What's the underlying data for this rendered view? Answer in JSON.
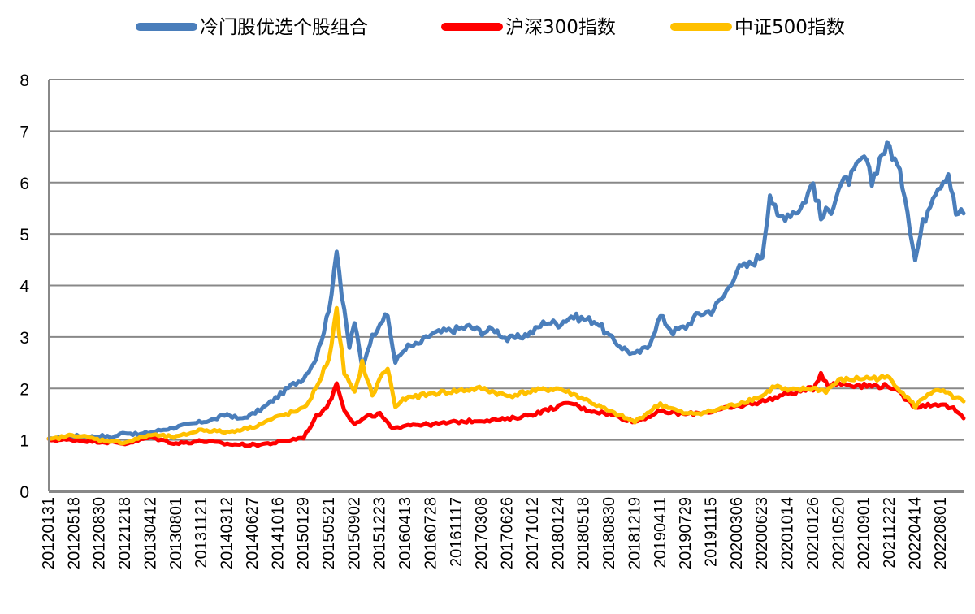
{
  "chart_data": {
    "type": "line",
    "title": "",
    "xlabel": "",
    "ylabel": "",
    "ylim": [
      0,
      8
    ],
    "yticks": [
      "0",
      "1",
      "2",
      "3",
      "4",
      "5",
      "6",
      "7",
      "8"
    ],
    "grid": true,
    "legend_position": "top",
    "x_tick_labels": [
      "20120131",
      "20120518",
      "20120830",
      "20121218",
      "20130412",
      "20130801",
      "20131121",
      "20140312",
      "20140627",
      "20141016",
      "20150129",
      "20150521",
      "20150902",
      "20151223",
      "20160413",
      "20160728",
      "20161117",
      "20170308",
      "20170626",
      "20171012",
      "20180124",
      "20180518",
      "20180830",
      "20181219",
      "20190411",
      "20190729",
      "20191115",
      "20200306",
      "20200623",
      "20201014",
      "20210126",
      "20210520",
      "20210901",
      "20211222",
      "20220414",
      "20220801"
    ],
    "series": [
      {
        "name": "冷门股优选个股组合",
        "color": "#4a7ebb",
        "points": [
          [
            0,
            1.0
          ],
          [
            0.5,
            1.05
          ],
          [
            1,
            1.08
          ],
          [
            1.5,
            1.05
          ],
          [
            2,
            1.08
          ],
          [
            2.5,
            1.05
          ],
          [
            3,
            1.15
          ],
          [
            3.5,
            1.1
          ],
          [
            4,
            1.15
          ],
          [
            4.5,
            1.2
          ],
          [
            5,
            1.25
          ],
          [
            5.5,
            1.3
          ],
          [
            6,
            1.35
          ],
          [
            6.5,
            1.4
          ],
          [
            7,
            1.5
          ],
          [
            7.5,
            1.4
          ],
          [
            8,
            1.5
          ],
          [
            8.5,
            1.65
          ],
          [
            9,
            1.85
          ],
          [
            9.5,
            2.05
          ],
          [
            10,
            2.2
          ],
          [
            10.5,
            2.6
          ],
          [
            11,
            3.5
          ],
          [
            11.3,
            4.75
          ],
          [
            11.5,
            3.8
          ],
          [
            11.8,
            2.8
          ],
          [
            12,
            3.3
          ],
          [
            12.3,
            2.4
          ],
          [
            12.6,
            2.9
          ],
          [
            13,
            3.3
          ],
          [
            13.3,
            3.4
          ],
          [
            13.6,
            2.5
          ],
          [
            14,
            2.8
          ],
          [
            14.5,
            2.85
          ],
          [
            15,
            3.05
          ],
          [
            15.5,
            3.1
          ],
          [
            16,
            3.15
          ],
          [
            16.5,
            3.2
          ],
          [
            17,
            3.1
          ],
          [
            17.5,
            3.15
          ],
          [
            18,
            2.95
          ],
          [
            18.5,
            3.0
          ],
          [
            19,
            3.1
          ],
          [
            19.5,
            3.3
          ],
          [
            20,
            3.25
          ],
          [
            20.5,
            3.4
          ],
          [
            21,
            3.35
          ],
          [
            21.5,
            3.3
          ],
          [
            22,
            3.0
          ],
          [
            22.5,
            2.8
          ],
          [
            23,
            2.65
          ],
          [
            23.5,
            2.8
          ],
          [
            24,
            3.4
          ],
          [
            24.5,
            3.1
          ],
          [
            25,
            3.2
          ],
          [
            25.5,
            3.45
          ],
          [
            26,
            3.5
          ],
          [
            26.5,
            3.8
          ],
          [
            27,
            4.3
          ],
          [
            27.5,
            4.4
          ],
          [
            28,
            4.6
          ],
          [
            28.3,
            5.8
          ],
          [
            28.6,
            5.3
          ],
          [
            29,
            5.4
          ],
          [
            29.5,
            5.5
          ],
          [
            30,
            6.0
          ],
          [
            30.3,
            5.3
          ],
          [
            30.7,
            5.5
          ],
          [
            31,
            5.9
          ],
          [
            31.5,
            6.1
          ],
          [
            32,
            6.5
          ],
          [
            32.3,
            6.0
          ],
          [
            32.7,
            6.6
          ],
          [
            33,
            6.7
          ],
          [
            33.3,
            6.3
          ],
          [
            33.6,
            5.8
          ],
          [
            34,
            4.5
          ],
          [
            34.3,
            5.2
          ],
          [
            34.7,
            5.8
          ],
          [
            35,
            6.0
          ],
          [
            35.3,
            6.2
          ],
          [
            35.6,
            5.4
          ],
          [
            35.9,
            5.4
          ]
        ]
      },
      {
        "name": "沪深300指数",
        "color": "#ff0000",
        "points": [
          [
            0,
            1.0
          ],
          [
            1,
            1.0
          ],
          [
            2,
            0.97
          ],
          [
            3,
            0.93
          ],
          [
            4,
            1.05
          ],
          [
            5,
            0.93
          ],
          [
            6,
            0.98
          ],
          [
            7,
            0.92
          ],
          [
            8,
            0.9
          ],
          [
            9,
            0.95
          ],
          [
            10,
            1.05
          ],
          [
            10.5,
            1.45
          ],
          [
            11,
            1.7
          ],
          [
            11.3,
            2.1
          ],
          [
            11.6,
            1.6
          ],
          [
            12,
            1.3
          ],
          [
            12.5,
            1.45
          ],
          [
            13,
            1.5
          ],
          [
            13.5,
            1.2
          ],
          [
            14,
            1.3
          ],
          [
            15,
            1.3
          ],
          [
            16,
            1.35
          ],
          [
            17,
            1.38
          ],
          [
            18,
            1.4
          ],
          [
            19,
            1.5
          ],
          [
            20,
            1.65
          ],
          [
            20.5,
            1.72
          ],
          [
            21,
            1.6
          ],
          [
            22,
            1.5
          ],
          [
            23,
            1.35
          ],
          [
            24,
            1.55
          ],
          [
            25,
            1.5
          ],
          [
            26,
            1.55
          ],
          [
            27,
            1.65
          ],
          [
            28,
            1.75
          ],
          [
            29,
            1.9
          ],
          [
            30,
            2.0
          ],
          [
            30.3,
            2.3
          ],
          [
            30.6,
            2.05
          ],
          [
            31,
            2.1
          ],
          [
            32,
            2.05
          ],
          [
            33,
            2.05
          ],
          [
            34,
            1.65
          ],
          [
            35,
            1.7
          ],
          [
            35.5,
            1.6
          ],
          [
            35.9,
            1.42
          ]
        ]
      },
      {
        "name": "中证500指数",
        "color": "#ffc000",
        "points": [
          [
            0,
            1.0
          ],
          [
            1,
            1.1
          ],
          [
            2,
            1.0
          ],
          [
            3,
            0.95
          ],
          [
            4,
            1.1
          ],
          [
            5,
            1.05
          ],
          [
            6,
            1.2
          ],
          [
            7,
            1.15
          ],
          [
            8,
            1.25
          ],
          [
            9,
            1.45
          ],
          [
            10,
            1.6
          ],
          [
            10.5,
            2.0
          ],
          [
            11,
            2.6
          ],
          [
            11.3,
            3.5
          ],
          [
            11.6,
            2.3
          ],
          [
            12,
            1.9
          ],
          [
            12.3,
            2.5
          ],
          [
            12.7,
            1.85
          ],
          [
            13,
            2.2
          ],
          [
            13.3,
            2.4
          ],
          [
            13.6,
            1.65
          ],
          [
            14,
            1.8
          ],
          [
            15,
            1.9
          ],
          [
            16,
            1.95
          ],
          [
            17,
            2.0
          ],
          [
            18,
            1.85
          ],
          [
            19,
            1.95
          ],
          [
            20,
            2.0
          ],
          [
            21,
            1.8
          ],
          [
            22,
            1.55
          ],
          [
            23,
            1.35
          ],
          [
            24,
            1.7
          ],
          [
            25,
            1.5
          ],
          [
            26,
            1.55
          ],
          [
            27,
            1.7
          ],
          [
            28,
            1.85
          ],
          [
            28.5,
            2.05
          ],
          [
            29,
            1.95
          ],
          [
            30,
            2.0
          ],
          [
            30.5,
            1.95
          ],
          [
            31,
            2.15
          ],
          [
            32,
            2.2
          ],
          [
            33,
            2.2
          ],
          [
            34,
            1.65
          ],
          [
            34.5,
            1.9
          ],
          [
            35,
            1.95
          ],
          [
            35.9,
            1.75
          ]
        ]
      }
    ]
  }
}
